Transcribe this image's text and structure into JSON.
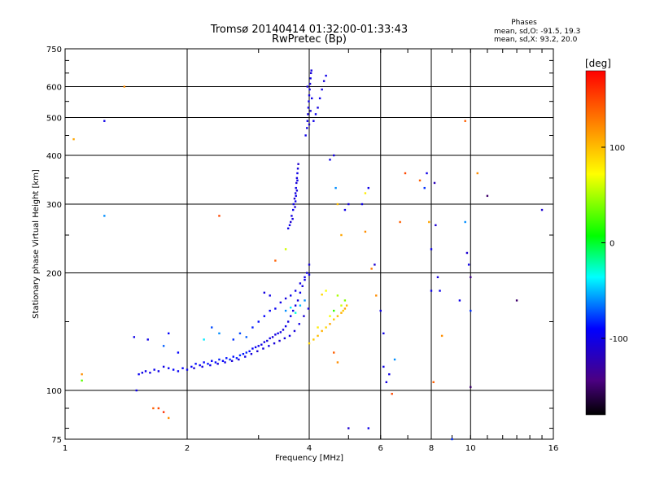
{
  "chart_data": {
    "type": "scatter",
    "title": "Tromsø 20140414 01:32:00-01:33:43",
    "subtitle": "RwPretec (Bp)",
    "xlabel": "Frequency [MHz]",
    "ylabel": "Stationary phase Virtual Height [km]",
    "x_scale": "log",
    "y_scale": "log",
    "xlim": [
      1,
      16
    ],
    "ylim": [
      75,
      750
    ],
    "x_ticks": [
      1,
      2,
      4,
      6,
      8,
      10,
      16
    ],
    "x_tick_labels": [
      "1",
      "2",
      "4",
      "6",
      "8",
      "10",
      "16"
    ],
    "y_ticks": [
      75,
      100,
      200,
      300,
      400,
      500,
      600,
      750
    ],
    "y_tick_labels": [
      "75",
      "100",
      "200",
      "300",
      "400",
      "500",
      "600",
      "750"
    ],
    "grid": true,
    "stats": {
      "header": "Phases",
      "line_o": "mean, sd,O: -91.5, 19.3",
      "line_x": "mean, sd,X:  93.2, 20.0"
    },
    "colorbar": {
      "label": "[deg]",
      "range": [
        -180,
        180
      ],
      "ticks": [
        100,
        0,
        -100
      ],
      "tick_labels": [
        "100",
        "0",
        "-100"
      ]
    },
    "series": [
      {
        "values": [
          [
            1.52,
            110,
            -95
          ],
          [
            1.55,
            111,
            -100
          ],
          [
            1.58,
            112,
            -98
          ],
          [
            1.62,
            111,
            -102
          ],
          [
            1.66,
            113,
            -97
          ],
          [
            1.7,
            112,
            -100
          ],
          [
            1.75,
            115,
            -101
          ],
          [
            1.8,
            114,
            -96
          ],
          [
            1.85,
            113,
            -90
          ],
          [
            1.9,
            112,
            -95
          ],
          [
            1.95,
            114,
            -92
          ],
          [
            2.0,
            113,
            -96
          ],
          [
            2.05,
            115,
            -92
          ],
          [
            2.1,
            117,
            -88
          ],
          [
            2.15,
            116,
            -94
          ],
          [
            2.2,
            118,
            -90
          ],
          [
            2.25,
            117,
            -86
          ],
          [
            2.3,
            119,
            -92
          ],
          [
            2.35,
            118,
            -88
          ],
          [
            2.4,
            120,
            -84
          ],
          [
            2.45,
            119,
            -90
          ],
          [
            2.5,
            121,
            -86
          ],
          [
            2.55,
            120,
            -80
          ],
          [
            2.6,
            122,
            -88
          ],
          [
            2.65,
            121,
            -84
          ],
          [
            2.7,
            123,
            -80
          ],
          [
            2.75,
            124,
            -86
          ],
          [
            2.8,
            125,
            -82
          ],
          [
            2.85,
            126,
            -88
          ],
          [
            2.9,
            128,
            -92
          ],
          [
            2.95,
            129,
            -95
          ],
          [
            3.0,
            130,
            -98
          ],
          [
            3.05,
            131,
            -100
          ],
          [
            3.1,
            133,
            -102
          ],
          [
            3.15,
            134,
            -105
          ],
          [
            3.2,
            136,
            -100
          ],
          [
            3.25,
            137,
            -108
          ],
          [
            3.3,
            139,
            -102
          ],
          [
            3.35,
            140,
            -98
          ],
          [
            3.4,
            141,
            -104
          ],
          [
            3.45,
            143,
            -106
          ],
          [
            3.5,
            146,
            -100
          ],
          [
            3.55,
            150,
            -104
          ],
          [
            3.6,
            155,
            -98
          ],
          [
            3.65,
            160,
            -102
          ],
          [
            3.7,
            165,
            -100
          ],
          [
            3.75,
            170,
            -104
          ],
          [
            3.8,
            178,
            -98
          ],
          [
            3.85,
            185,
            -102
          ],
          [
            3.9,
            192,
            -100
          ],
          [
            3.95,
            200,
            -104
          ],
          [
            4.0,
            210,
            -106
          ],
          [
            2.08,
            114,
            -110
          ],
          [
            2.18,
            115,
            -105
          ],
          [
            2.28,
            116,
            -100
          ],
          [
            2.38,
            117,
            -105
          ],
          [
            2.48,
            118,
            -100
          ],
          [
            2.58,
            119,
            -108
          ],
          [
            2.68,
            120,
            -104
          ],
          [
            2.78,
            122,
            -100
          ],
          [
            2.88,
            124,
            -104
          ],
          [
            2.98,
            126,
            -108
          ],
          [
            3.08,
            128,
            -104
          ],
          [
            3.18,
            130,
            -100
          ],
          [
            3.28,
            132,
            -106
          ],
          [
            3.38,
            134,
            -110
          ],
          [
            3.48,
            136,
            -104
          ],
          [
            3.58,
            138,
            -100
          ],
          [
            3.68,
            142,
            -106
          ],
          [
            3.78,
            148,
            -102
          ],
          [
            3.88,
            155,
            -108
          ],
          [
            3.98,
            162,
            -104
          ],
          [
            2.6,
            135,
            -80
          ],
          [
            2.7,
            140,
            -75
          ],
          [
            2.8,
            137,
            -70
          ],
          [
            2.9,
            145,
            -85
          ],
          [
            3.0,
            150,
            -88
          ],
          [
            3.1,
            155,
            -90
          ],
          [
            3.2,
            160,
            -92
          ],
          [
            3.3,
            162,
            -95
          ],
          [
            3.4,
            168,
            -100
          ],
          [
            3.5,
            172,
            -104
          ],
          [
            3.6,
            175,
            -98
          ],
          [
            3.7,
            180,
            -100
          ],
          [
            3.8,
            188,
            -102
          ],
          [
            3.9,
            195,
            -98
          ],
          [
            4.0,
            198,
            -100
          ],
          [
            3.5,
            160,
            -60
          ],
          [
            3.6,
            163,
            -40
          ],
          [
            3.7,
            158,
            -30
          ],
          [
            3.8,
            165,
            -50
          ],
          [
            3.9,
            170,
            -60
          ],
          [
            3.2,
            175,
            -100
          ],
          [
            3.1,
            178,
            -104
          ],
          [
            2.4,
            140,
            -60
          ],
          [
            2.3,
            145,
            -75
          ],
          [
            1.8,
            140,
            -90
          ],
          [
            1.75,
            130,
            -70
          ],
          [
            1.6,
            135,
            -100
          ],
          [
            1.9,
            125,
            -90
          ]
        ]
      },
      {
        "values": [
          [
            3.55,
            260,
            -100
          ],
          [
            3.6,
            270,
            -110
          ],
          [
            3.62,
            280,
            -104
          ],
          [
            3.65,
            290,
            -98
          ],
          [
            3.66,
            300,
            -102
          ],
          [
            3.68,
            310,
            -110
          ],
          [
            3.7,
            320,
            -104
          ],
          [
            3.71,
            330,
            -100
          ],
          [
            3.72,
            340,
            -108
          ],
          [
            3.73,
            350,
            -104
          ],
          [
            3.74,
            360,
            -100
          ],
          [
            3.75,
            370,
            -106
          ],
          [
            3.76,
            380,
            -112
          ],
          [
            3.58,
            265,
            -100
          ],
          [
            3.64,
            275,
            -104
          ],
          [
            3.69,
            295,
            -110
          ],
          [
            3.7,
            305,
            -98
          ],
          [
            3.71,
            315,
            -100
          ],
          [
            3.73,
            325,
            -106
          ],
          [
            3.74,
            345,
            -102
          ]
        ]
      },
      {
        "values": [
          [
            3.92,
            450,
            -100
          ],
          [
            3.95,
            470,
            -104
          ],
          [
            3.96,
            490,
            -100
          ],
          [
            3.97,
            510,
            -106
          ],
          [
            3.98,
            530,
            -102
          ],
          [
            3.99,
            550,
            -100
          ],
          [
            4.0,
            570,
            -104
          ],
          [
            4.01,
            590,
            -102
          ],
          [
            4.02,
            610,
            -106
          ],
          [
            4.03,
            630,
            -100
          ],
          [
            4.04,
            650,
            -108
          ],
          [
            4.05,
            660,
            -104
          ],
          [
            4.1,
            490,
            -100
          ],
          [
            4.15,
            510,
            -98
          ],
          [
            4.2,
            530,
            -104
          ],
          [
            4.25,
            560,
            -100
          ],
          [
            4.3,
            590,
            -102
          ],
          [
            4.35,
            620,
            -106
          ],
          [
            4.4,
            640,
            -100
          ],
          [
            4.0,
            480,
            -110
          ],
          [
            4.03,
            520,
            -104
          ],
          [
            4.06,
            560,
            -100
          ],
          [
            3.96,
            600,
            -108
          ]
        ]
      },
      {
        "values": [
          [
            4.0,
            132,
            90
          ],
          [
            4.1,
            135,
            95
          ],
          [
            4.2,
            138,
            100
          ],
          [
            4.3,
            142,
            105
          ],
          [
            4.4,
            145,
            90
          ],
          [
            4.5,
            148,
            110
          ],
          [
            4.6,
            152,
            95
          ],
          [
            4.7,
            155,
            100
          ],
          [
            4.8,
            158,
            105
          ],
          [
            4.85,
            160,
            95
          ],
          [
            4.9,
            162,
            110
          ],
          [
            4.95,
            165,
            100
          ],
          [
            4.2,
            145,
            80
          ],
          [
            4.5,
            155,
            70
          ],
          [
            4.8,
            165,
            60
          ],
          [
            4.9,
            170,
            40
          ],
          [
            4.6,
            160,
            20
          ],
          [
            4.7,
            175,
            50
          ],
          [
            4.4,
            180,
            70
          ],
          [
            4.3,
            176,
            90
          ]
        ]
      },
      {
        "values": [
          [
            1.05,
            440,
            110
          ],
          [
            1.1,
            110,
            120
          ],
          [
            1.1,
            106,
            30
          ],
          [
            1.25,
            490,
            -100
          ],
          [
            1.25,
            280,
            -60
          ],
          [
            1.4,
            600,
            120
          ],
          [
            1.48,
            137,
            -100
          ],
          [
            1.5,
            100,
            -100
          ],
          [
            1.65,
            90,
            140
          ],
          [
            1.7,
            90,
            150
          ],
          [
            1.75,
            88,
            160
          ],
          [
            1.8,
            85,
            120
          ],
          [
            2.4,
            280,
            150
          ],
          [
            3.3,
            215,
            140
          ],
          [
            3.5,
            230,
            60
          ],
          [
            4.5,
            390,
            -100
          ],
          [
            4.6,
            400,
            -104
          ],
          [
            4.65,
            330,
            -60
          ],
          [
            4.7,
            300,
            100
          ],
          [
            4.8,
            250,
            110
          ],
          [
            4.9,
            290,
            -100
          ],
          [
            5.0,
            300,
            -104
          ],
          [
            5.4,
            300,
            -100
          ],
          [
            5.5,
            320,
            80
          ],
          [
            5.6,
            330,
            -100
          ],
          [
            5.5,
            255,
            120
          ],
          [
            5.7,
            205,
            130
          ],
          [
            5.8,
            210,
            -110
          ],
          [
            5.85,
            175,
            120
          ],
          [
            6.0,
            160,
            -100
          ],
          [
            6.1,
            140,
            -100
          ],
          [
            6.1,
            115,
            -100
          ],
          [
            6.2,
            105,
            -104
          ],
          [
            6.3,
            110,
            -100
          ],
          [
            6.4,
            98,
            150
          ],
          [
            6.5,
            120,
            -60
          ],
          [
            6.7,
            270,
            140
          ],
          [
            6.9,
            360,
            150
          ],
          [
            7.5,
            345,
            140
          ],
          [
            7.7,
            330,
            -80
          ],
          [
            7.8,
            360,
            -100
          ],
          [
            7.9,
            270,
            110
          ],
          [
            8.0,
            230,
            -100
          ],
          [
            8.0,
            180,
            -100
          ],
          [
            8.1,
            105,
            140
          ],
          [
            8.15,
            340,
            -120
          ],
          [
            8.2,
            265,
            -110
          ],
          [
            8.3,
            195,
            -104
          ],
          [
            8.4,
            180,
            -98
          ],
          [
            8.5,
            138,
            120
          ],
          [
            9.0,
            75,
            -80
          ],
          [
            9.4,
            170,
            -100
          ],
          [
            9.7,
            490,
            140
          ],
          [
            9.7,
            270,
            -60
          ],
          [
            9.8,
            225,
            -110
          ],
          [
            9.9,
            210,
            -100
          ],
          [
            10.0,
            195,
            -140
          ],
          [
            10.0,
            102,
            -150
          ],
          [
            10.0,
            160,
            -80
          ],
          [
            10.4,
            360,
            120
          ],
          [
            11.0,
            315,
            -150
          ],
          [
            13.0,
            170,
            -150
          ],
          [
            15.0,
            290,
            -110
          ],
          [
            5.0,
            80,
            -110
          ],
          [
            5.6,
            80,
            -100
          ],
          [
            4.6,
            125,
            140
          ],
          [
            4.7,
            118,
            120
          ],
          [
            2.2,
            135,
            -40
          ]
        ]
      }
    ]
  }
}
